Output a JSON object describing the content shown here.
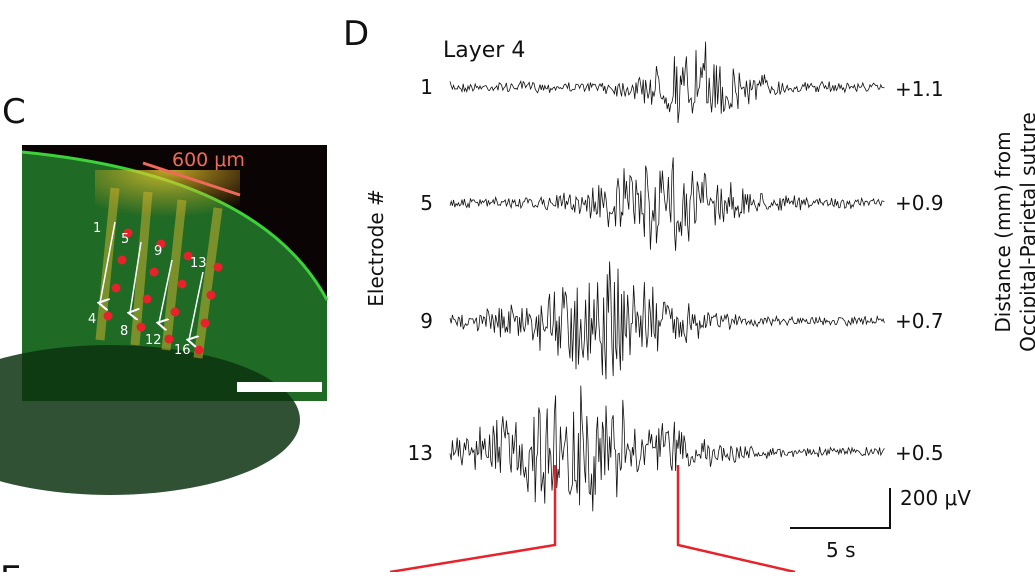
{
  "panel_c": {
    "label": "C",
    "scale_text": "600 μm",
    "electrode_labels": [
      "1",
      "5",
      "9",
      "13",
      "4",
      "8",
      "12",
      "16"
    ],
    "colors": {
      "tissue": "#1f6a25",
      "marker": "#e8222a",
      "scale_line": "#f06a5a",
      "arrow": "#ffffff"
    }
  },
  "panel_d": {
    "label": "D",
    "title": "Layer 4",
    "y_axis_label": "Electrode #",
    "right_axis_label_line1": "Distance (mm) from",
    "right_axis_label_line2": "Occipital-Parietal suture",
    "traces": [
      {
        "electrode": "1",
        "distance": "+1.1"
      },
      {
        "electrode": "5",
        "distance": "+0.9"
      },
      {
        "electrode": "9",
        "distance": "+0.7"
      },
      {
        "electrode": "13",
        "distance": "+0.5"
      }
    ],
    "scale_bar": {
      "amplitude": "200 μV",
      "time": "5 s"
    },
    "colors": {
      "trace": "#111111",
      "zoom_lines": "#e8222a"
    }
  },
  "panel_e": {
    "label": "E"
  }
}
